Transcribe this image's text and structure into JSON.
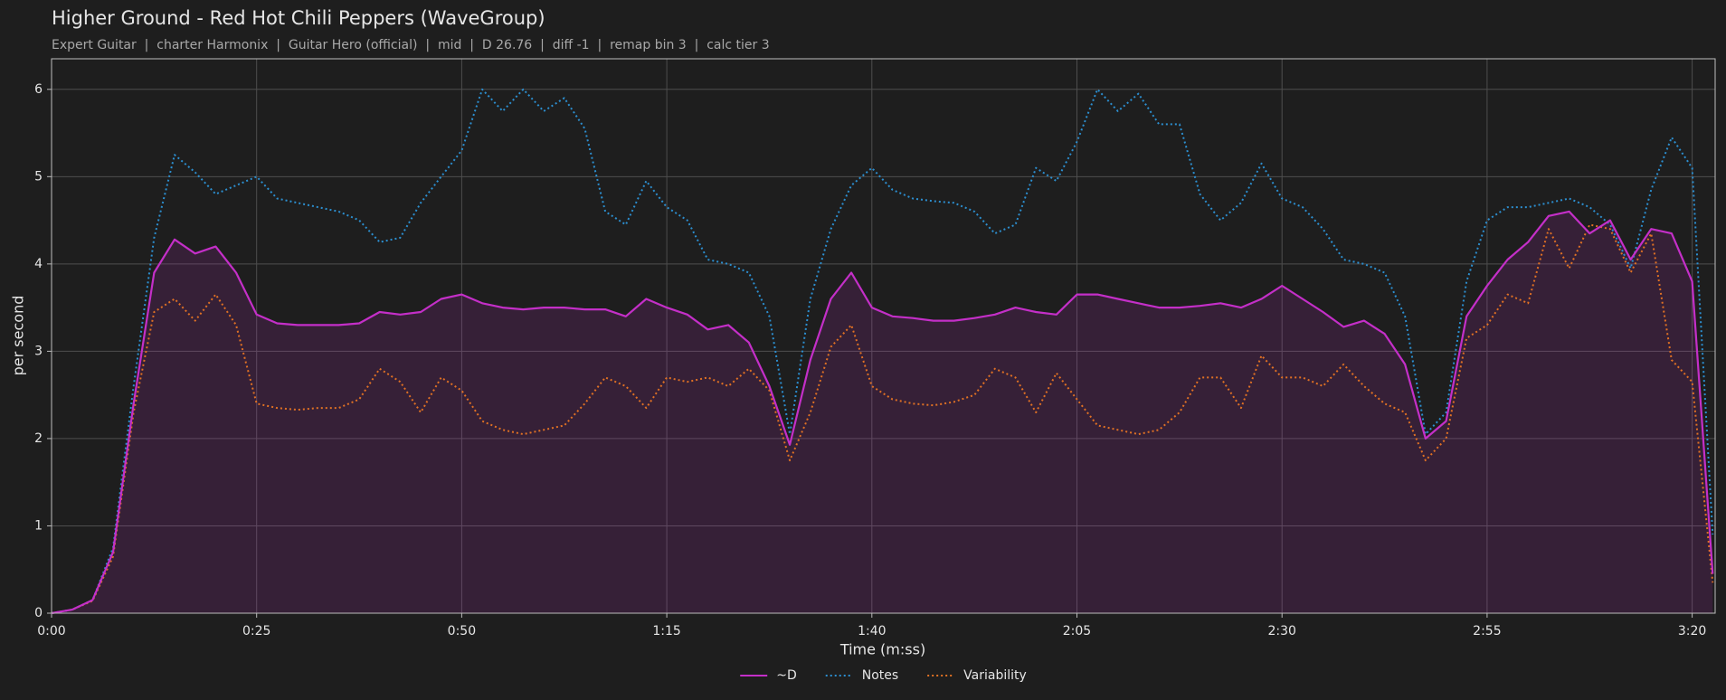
{
  "chart_data": {
    "type": "line",
    "title": "Higher Ground - Red Hot Chili Peppers (WaveGroup)",
    "subtitle": "Expert Guitar  |  charter Harmonix  |  Guitar Hero (official)  |  mid  |  D 26.76  |  diff -1  |  remap bin 3  |  calc tier 3",
    "xlabel": "Time (m:ss)",
    "ylabel": "per second",
    "x": [
      0,
      2.5,
      5,
      7.5,
      10,
      12.5,
      15,
      17.5,
      20,
      22.5,
      25,
      27.5,
      30,
      32.5,
      35,
      37.5,
      40,
      42.5,
      45,
      47.5,
      50,
      52.5,
      55,
      57.5,
      60,
      62.5,
      65,
      67.5,
      70,
      72.5,
      75,
      77.5,
      80,
      82.5,
      85,
      87.5,
      90,
      92.5,
      95,
      97.5,
      100,
      102.5,
      105,
      107.5,
      110,
      112.5,
      115,
      117.5,
      120,
      122.5,
      125,
      127.5,
      130,
      132.5,
      135,
      137.5,
      140,
      142.5,
      145,
      147.5,
      150,
      152.5,
      155,
      157.5,
      160,
      162.5,
      165,
      167.5,
      170,
      172.5,
      175,
      177.5,
      180,
      182.5,
      185,
      187.5,
      190,
      192.5,
      195,
      197.5,
      200,
      202.5
    ],
    "series": [
      {
        "name": "~D",
        "color": "#c42fc8",
        "style": "solid",
        "fill_under": true,
        "values": [
          0,
          0.04,
          0.15,
          0.7,
          2.4,
          3.9,
          4.28,
          4.12,
          4.2,
          3.9,
          3.42,
          3.32,
          3.3,
          3.3,
          3.3,
          3.32,
          3.45,
          3.42,
          3.45,
          3.6,
          3.65,
          3.55,
          3.5,
          3.48,
          3.5,
          3.5,
          3.48,
          3.48,
          3.4,
          3.6,
          3.5,
          3.42,
          3.25,
          3.3,
          3.1,
          2.6,
          1.93,
          2.9,
          3.6,
          3.9,
          3.5,
          3.4,
          3.38,
          3.35,
          3.35,
          3.38,
          3.42,
          3.5,
          3.45,
          3.42,
          3.65,
          3.65,
          3.6,
          3.55,
          3.5,
          3.5,
          3.52,
          3.55,
          3.5,
          3.6,
          3.75,
          3.6,
          3.45,
          3.28,
          3.35,
          3.2,
          2.85,
          2.0,
          2.2,
          3.4,
          3.75,
          4.05,
          4.25,
          4.55,
          4.6,
          4.35,
          4.5,
          4.05,
          4.4,
          4.35,
          3.8,
          0.45
        ]
      },
      {
        "name": "Notes",
        "color": "#2c8fd0",
        "style": "dotted",
        "values": [
          0,
          0.04,
          0.15,
          0.75,
          2.6,
          4.3,
          5.25,
          5.05,
          4.8,
          4.9,
          5.0,
          4.75,
          4.7,
          4.65,
          4.6,
          4.5,
          4.25,
          4.3,
          4.7,
          5.0,
          5.3,
          6.0,
          5.75,
          6.0,
          5.75,
          5.9,
          5.55,
          4.6,
          4.45,
          4.95,
          4.65,
          4.5,
          4.05,
          4.0,
          3.9,
          3.4,
          2.05,
          3.6,
          4.4,
          4.9,
          5.1,
          4.85,
          4.75,
          4.72,
          4.7,
          4.6,
          4.35,
          4.45,
          5.1,
          4.95,
          5.4,
          6.0,
          5.75,
          5.95,
          5.6,
          5.6,
          4.8,
          4.5,
          4.7,
          5.15,
          4.75,
          4.65,
          4.4,
          4.05,
          4.0,
          3.9,
          3.4,
          2.05,
          2.3,
          3.8,
          4.5,
          4.65,
          4.65,
          4.7,
          4.75,
          4.65,
          4.45,
          3.95,
          4.85,
          5.45,
          5.1,
          0.9
        ]
      },
      {
        "name": "Variability",
        "color": "#e07124",
        "style": "dotted",
        "values": [
          0,
          0.04,
          0.14,
          0.65,
          2.3,
          3.45,
          3.6,
          3.35,
          3.65,
          3.3,
          2.4,
          2.35,
          2.33,
          2.35,
          2.35,
          2.45,
          2.8,
          2.65,
          2.3,
          2.7,
          2.55,
          2.2,
          2.1,
          2.05,
          2.1,
          2.15,
          2.4,
          2.7,
          2.6,
          2.35,
          2.7,
          2.65,
          2.7,
          2.6,
          2.8,
          2.55,
          1.75,
          2.3,
          3.05,
          3.3,
          2.6,
          2.45,
          2.4,
          2.38,
          2.42,
          2.5,
          2.8,
          2.7,
          2.3,
          2.75,
          2.45,
          2.15,
          2.1,
          2.05,
          2.1,
          2.3,
          2.7,
          2.7,
          2.35,
          2.95,
          2.7,
          2.7,
          2.6,
          2.85,
          2.6,
          2.4,
          2.3,
          1.75,
          2.0,
          3.15,
          3.3,
          3.65,
          3.55,
          4.4,
          3.95,
          4.45,
          4.4,
          3.9,
          4.35,
          2.9,
          2.65,
          0.35
        ]
      }
    ],
    "xlim": [
      0,
      202.8
    ],
    "xticks": [
      {
        "value": 0,
        "label": "0:00"
      },
      {
        "value": 25,
        "label": "0:25"
      },
      {
        "value": 50,
        "label": "0:50"
      },
      {
        "value": 75,
        "label": "1:15"
      },
      {
        "value": 100,
        "label": "1:40"
      },
      {
        "value": 125,
        "label": "2:05"
      },
      {
        "value": 150,
        "label": "2:30"
      },
      {
        "value": 175,
        "label": "2:55"
      },
      {
        "value": 200,
        "label": "3:20"
      }
    ],
    "ylim": [
      0,
      6.35
    ],
    "yticks": [
      0,
      1,
      2,
      3,
      4,
      5,
      6
    ],
    "grid": true,
    "legend": "bottom"
  }
}
